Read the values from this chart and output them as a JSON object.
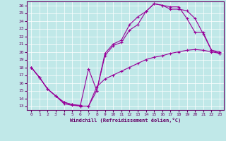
{
  "xlabel": "Windchill (Refroidissement éolien,°C)",
  "bg_color": "#c0e8e8",
  "line_color": "#990099",
  "xlim": [
    -0.5,
    23.5
  ],
  "ylim": [
    12.5,
    26.5
  ],
  "xticks": [
    0,
    1,
    2,
    3,
    4,
    5,
    6,
    7,
    8,
    9,
    10,
    11,
    12,
    13,
    14,
    15,
    16,
    17,
    18,
    19,
    20,
    21,
    22,
    23
  ],
  "yticks": [
    13,
    14,
    15,
    16,
    17,
    18,
    19,
    20,
    21,
    22,
    23,
    24,
    25,
    26
  ],
  "line1_x": [
    0,
    1,
    2,
    3,
    4,
    5,
    6,
    7,
    8,
    9,
    10,
    11,
    12,
    13,
    14,
    15,
    16,
    17,
    18,
    19,
    20,
    21,
    22,
    23
  ],
  "line1_y": [
    18,
    16.7,
    15.2,
    14.3,
    13.3,
    13.1,
    13.0,
    13.0,
    15.5,
    16.5,
    17.0,
    17.5,
    18.0,
    18.5,
    19.0,
    19.3,
    19.5,
    19.8,
    20.0,
    20.2,
    20.3,
    20.2,
    20.0,
    19.8
  ],
  "line2_x": [
    0,
    1,
    2,
    3,
    4,
    5,
    6,
    7,
    8,
    9,
    10,
    11,
    12,
    13,
    14,
    15,
    16,
    17,
    18,
    19,
    20,
    21,
    22,
    23
  ],
  "line2_y": [
    18,
    16.7,
    15.2,
    14.3,
    13.5,
    13.2,
    13.1,
    17.8,
    15.0,
    19.8,
    21.0,
    21.5,
    23.5,
    24.5,
    25.2,
    26.2,
    26.0,
    25.8,
    25.8,
    24.3,
    22.5,
    22.5,
    20.2,
    20.0
  ],
  "line3_x": [
    0,
    1,
    2,
    3,
    4,
    5,
    6,
    7,
    8,
    9,
    10,
    11,
    12,
    13,
    14,
    15,
    16,
    17,
    18,
    19,
    20,
    21,
    22,
    23
  ],
  "line3_y": [
    18,
    16.7,
    15.2,
    14.3,
    13.5,
    13.2,
    13.0,
    13.0,
    15.0,
    19.5,
    20.8,
    21.2,
    22.8,
    23.5,
    25.2,
    26.2,
    26.0,
    25.5,
    25.5,
    25.3,
    24.3,
    22.3,
    20.2,
    19.8
  ]
}
